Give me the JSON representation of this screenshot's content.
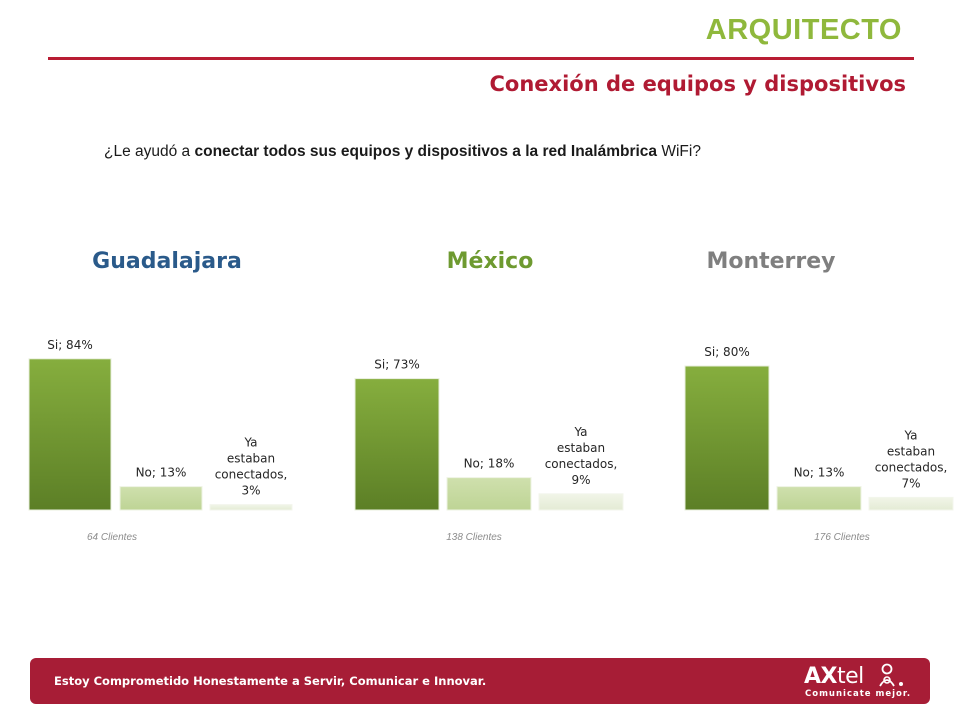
{
  "header": {
    "title": "ARQUITECTO",
    "subtitle": "Conexión de equipos y dispositivos"
  },
  "question": {
    "prefix": "¿Le ayudó a ",
    "bold": "conectar todos sus equipos y dispositivos a la red Inalámbrica",
    "suffix": " WiFi?"
  },
  "colors": {
    "accent_red": "#b81c33",
    "title_green": "#8fb83c",
    "bar_si": "#6f9a32",
    "bar_no": "#c6d9a0",
    "bar_ya": "#ecf1e1",
    "guadalajara": "#2a5a8a",
    "mexico": "#6e9a30",
    "monterrey": "#7f7f7f"
  },
  "chart_data": [
    {
      "type": "bar",
      "title": "Guadalajara",
      "categories": [
        "Si",
        "No",
        "Ya estaban conectados"
      ],
      "values": [
        84,
        13,
        3
      ],
      "data_labels": [
        "Si; 84%",
        "No; 13%",
        "Ya estaban conectados, 3%"
      ],
      "note": "64 Clientes",
      "ylim": [
        0,
        100
      ],
      "grid": false
    },
    {
      "type": "bar",
      "title": "México",
      "categories": [
        "Si",
        "No",
        "Ya estaban conectados"
      ],
      "values": [
        73,
        18,
        9
      ],
      "data_labels": [
        "Si; 73%",
        "No; 18%",
        "Ya estaban conectados, 9%"
      ],
      "note": "138 Clientes",
      "ylim": [
        0,
        100
      ],
      "grid": false
    },
    {
      "type": "bar",
      "title": "Monterrey",
      "categories": [
        "Si",
        "No",
        "Ya estaban conectados"
      ],
      "values": [
        80,
        13,
        7
      ],
      "data_labels": [
        "Si; 80%",
        "No; 13%",
        "Ya estaban conectados, 7%"
      ],
      "note": "176 Clientes",
      "ylim": [
        0,
        100
      ],
      "grid": false
    }
  ],
  "footer": {
    "slogan": "Estoy Comprometido Honestamente a Servir, Comunicar e Innovar.",
    "logo_ax": "AX",
    "logo_tel": "tel",
    "logo_tagline": "Comunicate mejor."
  }
}
